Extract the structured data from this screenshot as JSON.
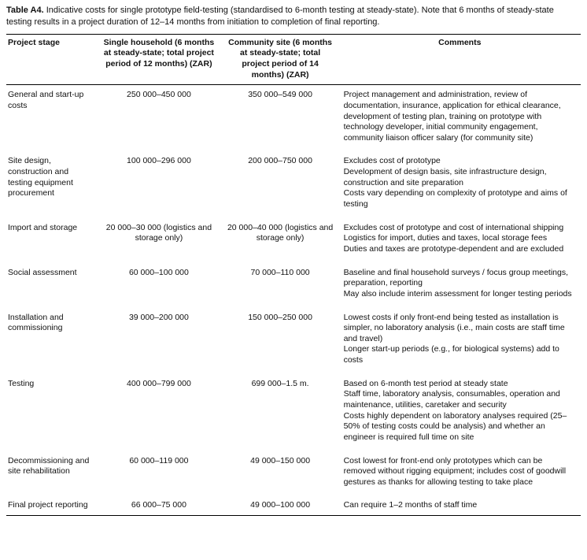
{
  "caption": {
    "label": "Table A4.",
    "text": "Indicative costs for single prototype field-testing (standardised to 6-month testing at steady-state). Note that 6 months of steady-state testing results in a project duration of 12–14 months from initiation to completion of final reporting."
  },
  "table": {
    "headers": [
      "Project stage",
      "Single household (6 months at steady-state; total project period of 12 months) (ZAR)",
      "Community site (6 months at steady-state; total project period of 14 months) (ZAR)",
      "Comments"
    ],
    "rows": [
      {
        "stage": "General and start-up costs",
        "single_household": "250 000–450 000",
        "community_site": "350 000–549 000",
        "comments": [
          "Project management and administration, review of documentation, insurance, application for ethical clearance, development of testing plan, training on prototype with technology developer, initial community engagement, community liaison officer salary (for community site)"
        ]
      },
      {
        "stage": "Site design, construction and testing equipment procurement",
        "single_household": "100 000–296 000",
        "community_site": "200 000–750 000",
        "comments": [
          "Excludes cost of prototype",
          "Development of design basis, site infrastructure design, construction and site preparation",
          "Costs vary depending on complexity of prototype and aims of testing"
        ]
      },
      {
        "stage": "Import and storage",
        "single_household": "20 000–30 000 (logistics and storage only)",
        "community_site": "20 000–40 000 (logistics and storage only)",
        "comments": [
          "Excludes cost of prototype and cost of international shipping",
          "Logistics for import, duties and taxes, local storage fees",
          "Duties and taxes are prototype-dependent and are excluded"
        ]
      },
      {
        "stage": "Social assessment",
        "single_household": "60 000–100 000",
        "community_site": "70 000–110 000",
        "comments": [
          "Baseline and final household surveys / focus group meetings, preparation, reporting",
          "May also include interim assessment for longer testing periods"
        ]
      },
      {
        "stage": "Installation and commissioning",
        "single_household": "39 000–200 000",
        "community_site": "150 000–250 000",
        "comments": [
          "Lowest costs if only front-end being tested as installation is simpler, no laboratory analysis (i.e., main costs are staff time and travel)",
          "Longer start-up periods (e.g., for biological systems) add to costs"
        ]
      },
      {
        "stage": "Testing",
        "single_household": "400 000–799 000",
        "community_site": "699 000–1.5 m.",
        "comments": [
          "Based on 6-month test period at steady state",
          "Staff time, laboratory analysis, consumables, operation and maintenance, utilities, caretaker and security",
          "Costs highly dependent on laboratory analyses required (25–50% of testing costs could be analysis) and whether an engineer is required full time on site"
        ]
      },
      {
        "stage": "Decommissioning and site rehabilitation",
        "single_household": "60 000–119 000",
        "community_site": "49 000–150 000",
        "comments": [
          "Cost lowest for front-end only prototypes which can be removed without rigging equipment; includes cost of goodwill gestures as thanks for allowing testing to take place"
        ]
      },
      {
        "stage": "Final project reporting",
        "single_household": "66 000–75 000",
        "community_site": "49 000–100 000",
        "comments": [
          "Can require 1–2 months of staff time"
        ]
      }
    ]
  }
}
